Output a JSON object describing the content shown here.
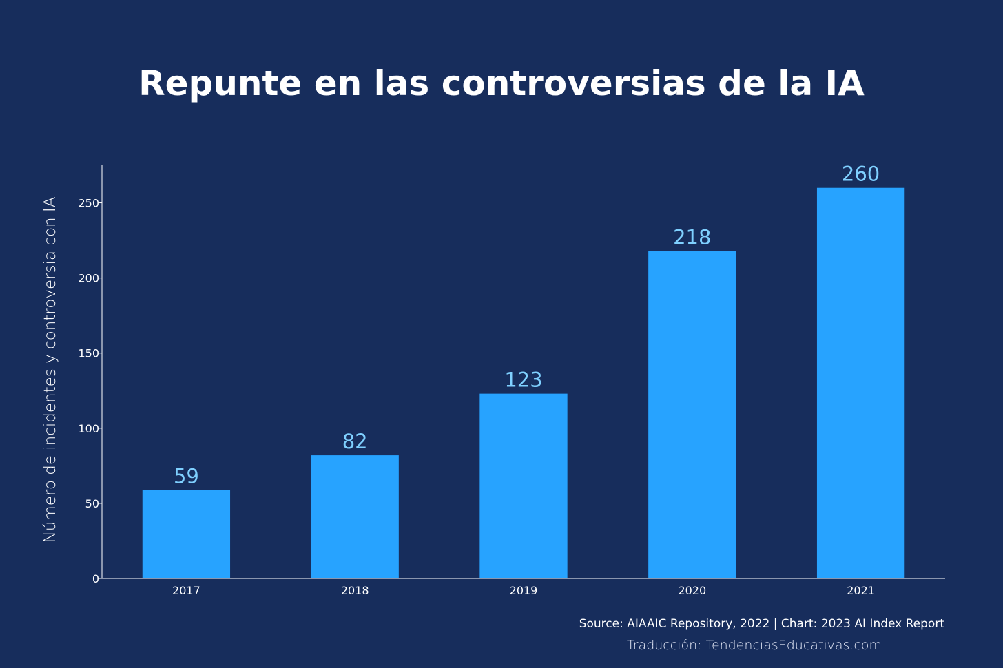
{
  "title": "Repunte en las controversias de la IA",
  "source_note": "Source: AIAAIC Repository, 2022 | Chart: 2023 AI Index Report",
  "translation_note": "Traducción: TendenciasEducativas.com",
  "colors": {
    "background": "#172d5c",
    "bar": "#27a3ff",
    "value_label": "#7fd0ff",
    "axis": "#ffffff",
    "text": "#ffffff"
  },
  "chart_data": {
    "type": "bar",
    "categories": [
      "2017",
      "2018",
      "2019",
      "2020",
      "2021"
    ],
    "values": [
      59,
      82,
      123,
      218,
      260
    ],
    "title": "Repunte en las controversias de la IA",
    "xlabel": "",
    "ylabel": "Número de incidentes y controversia con IA",
    "ylim": [
      0,
      275
    ],
    "yticks": [
      0,
      50,
      100,
      150,
      200,
      250
    ],
    "data_labels": [
      "59",
      "82",
      "123",
      "218",
      "260"
    ],
    "grid": false,
    "legend": "none"
  }
}
